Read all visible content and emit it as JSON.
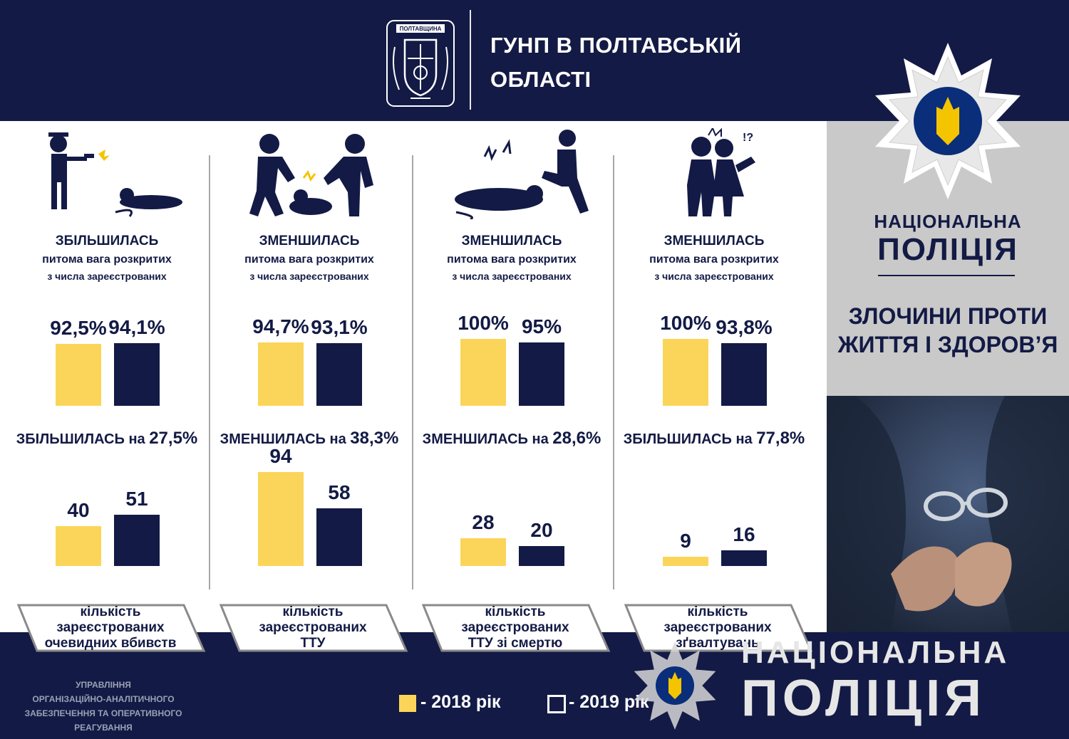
{
  "header": {
    "org_line1": "ГУНП В ПОЛТАВСЬКІЙ",
    "org_line2": "ОБЛАСТІ",
    "crest_text": "ПОЛТАВЩИНА"
  },
  "sidebar": {
    "np_line1": "НАЦІОНАЛЬНА",
    "np_line2": "ПОЛІЦІЯ",
    "crime_line1": "ЗЛОЧИНИ ПРОТИ",
    "crime_line2": "ЖИТТЯ І ЗДОРОВ’Я"
  },
  "colors": {
    "navy": "#131a45",
    "yellow_2018": "#fbd55a",
    "gray_panel": "#c9c9c9",
    "divider": "#a7a7a7"
  },
  "chart_data": [
    {
      "type": "bar",
      "icon": "shooting-icon",
      "status": "ЗБІЛЬШИЛАСЬ",
      "sub1": "питома вага  розкритих",
      "sub2": "з числа  зареєстрованих",
      "clearance": {
        "categories": [
          "2018 рік",
          "2019 рік"
        ],
        "values": [
          92.5,
          94.1
        ],
        "labels": [
          "92,5%",
          "94,1%"
        ]
      },
      "change_word": "ЗБІЛЬШИЛАСЬ",
      "change_on": "на",
      "change_value": "27,5%",
      "counts": {
        "categories": [
          "2018 рік",
          "2019 рік"
        ],
        "values": [
          40,
          51
        ],
        "labels": [
          "40",
          "51"
        ]
      },
      "label_line1": "кількість",
      "label_line2": "зареєстрованих",
      "label_line3": "очевидних вбивств"
    },
    {
      "type": "bar",
      "icon": "assault-icon",
      "status": "ЗМЕНШИЛАСЬ",
      "sub1": "питома вага  розкритих",
      "sub2": "з числа  зареєстрованих",
      "clearance": {
        "categories": [
          "2018 рік",
          "2019 рік"
        ],
        "values": [
          94.7,
          93.1
        ],
        "labels": [
          "94,7%",
          "93,1%"
        ]
      },
      "change_word": "ЗМЕНШИЛАСЬ",
      "change_on": "на",
      "change_value": "38,3%",
      "counts": {
        "categories": [
          "2018 рік",
          "2019 рік"
        ],
        "values": [
          94,
          58
        ],
        "labels": [
          "94",
          "58"
        ]
      },
      "label_line1": "кількість",
      "label_line2": "зареєстрованих",
      "label_line3": "ТТУ"
    },
    {
      "type": "bar",
      "icon": "kick-icon",
      "status": "ЗМЕНШИЛАСЬ",
      "sub1": "питома вага  розкритих",
      "sub2": "з числа  зареєстрованих",
      "clearance": {
        "categories": [
          "2018 рік",
          "2019 рік"
        ],
        "values": [
          100,
          95
        ],
        "labels": [
          "100%",
          "95%"
        ]
      },
      "change_word": "ЗМЕНШИЛАСЬ",
      "change_on": "на",
      "change_value": "28,6%",
      "counts": {
        "categories": [
          "2018 рік",
          "2019 рік"
        ],
        "values": [
          28,
          20
        ],
        "labels": [
          "28",
          "20"
        ]
      },
      "label_line1": "кількість",
      "label_line2": "зареєстрованих",
      "label_line3": "ТТУ зі смертю"
    },
    {
      "type": "bar",
      "icon": "harassment-icon",
      "status": "ЗМЕНШИЛАСЬ",
      "sub1": "питома вага  розкритих",
      "sub2": "з числа  зареєстрованих",
      "clearance": {
        "categories": [
          "2018 рік",
          "2019 рік"
        ],
        "values": [
          100,
          93.8
        ],
        "labels": [
          "100%",
          "93,8%"
        ]
      },
      "change_word": "ЗБІЛЬШИЛАСЬ",
      "change_on": "на",
      "change_value": "77,8%",
      "counts": {
        "categories": [
          "2018 рік",
          "2019 рік"
        ],
        "values": [
          9,
          16
        ],
        "labels": [
          "9",
          "16"
        ]
      },
      "label_line1": "кількість",
      "label_line2": "зареєстрованих",
      "label_line3": "зґвалтувань"
    }
  ],
  "legend": {
    "item_2018": "- 2018 рік",
    "item_2019": "- 2019 рік"
  },
  "footer": {
    "dept_line1": "УПРАВЛІННЯ",
    "dept_line2": "ОРГАНІЗАЦІЙНО-АНАЛІТИЧНОГО",
    "dept_line3": "ЗАБЕЗПЕЧЕННЯ ТА ОПЕРАТИВНОГО",
    "dept_line4": "РЕАГУВАННЯ",
    "watermark_line1": "НАЦІОНАЛЬНА",
    "watermark_line2": "ПОЛІЦІЯ"
  }
}
